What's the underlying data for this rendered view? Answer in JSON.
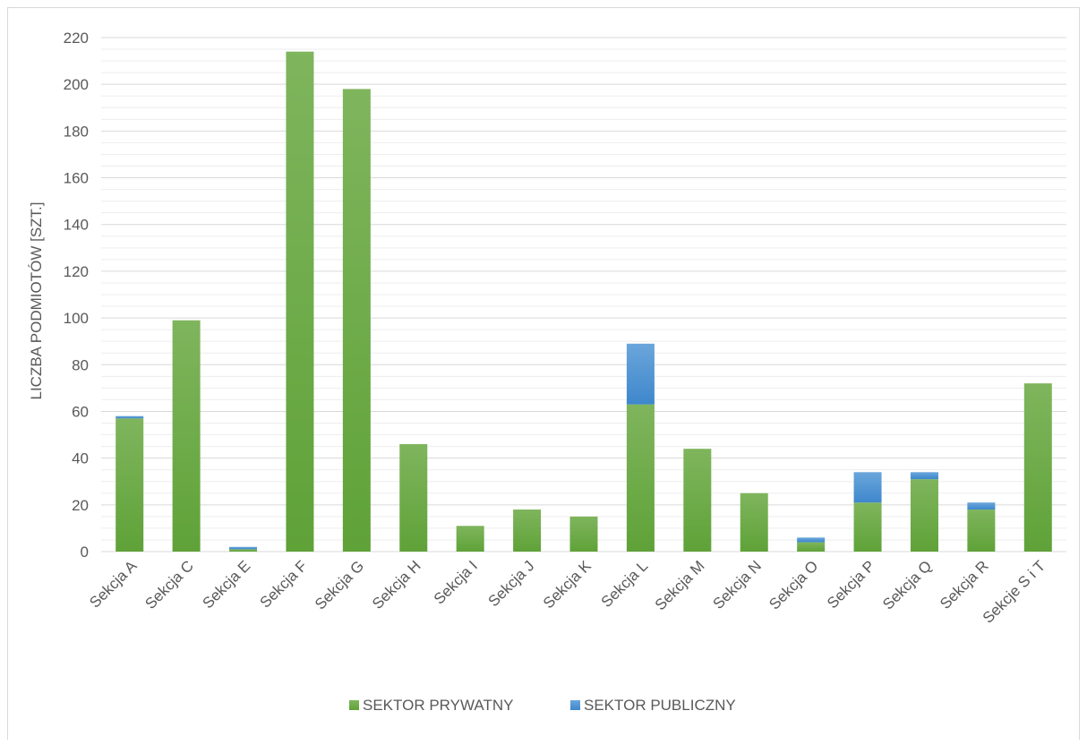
{
  "chart_data": {
    "type": "bar",
    "stacked": true,
    "ylabel": "LICZBA PODMIOTÓW [SZT.]",
    "xlabel": "",
    "ylim": [
      0,
      220
    ],
    "yticks": [
      0,
      20,
      40,
      60,
      80,
      100,
      120,
      140,
      160,
      180,
      200,
      220
    ],
    "minor_grid_step": 5,
    "grid": true,
    "legend_position": "bottom",
    "categories": [
      "Sekcja A",
      "Sekcja C",
      "Sekcja E",
      "Sekcja F",
      "Sekcja G",
      "Sekcja H",
      "Sekcja I",
      "Sekcja J",
      "Sekcja K",
      "Sekcja L",
      "Sekcja M",
      "Sekcja N",
      "Sekcja O",
      "Sekcja P",
      "Sekcja Q",
      "Sekcja R",
      "Sekcje S i T"
    ],
    "series": [
      {
        "name": "SEKTOR PRYWATNY",
        "color": "#70ad47",
        "values": [
          57,
          99,
          1,
          214,
          198,
          46,
          11,
          18,
          15,
          63,
          44,
          25,
          4,
          21,
          31,
          18,
          72
        ]
      },
      {
        "name": "SEKTOR PUBLICZNY",
        "color": "#5b9bd5",
        "values": [
          1,
          0,
          1,
          0,
          0,
          0,
          0,
          0,
          0,
          26,
          0,
          0,
          2,
          13,
          3,
          3,
          0
        ]
      }
    ]
  }
}
